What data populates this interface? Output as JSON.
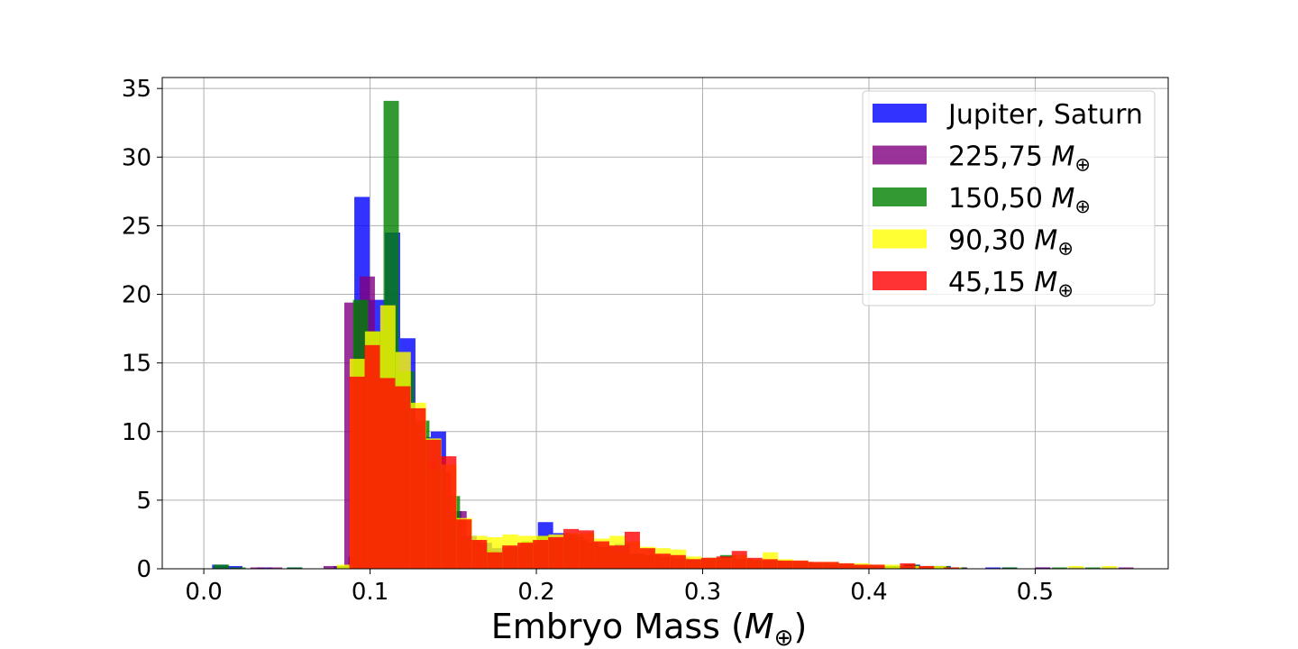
{
  "chart_data": {
    "type": "bar",
    "title": "",
    "xlabel": "Embryo Mass (",
    "xlabel_symbol": "M",
    "xlabel_sub": "⊕",
    "xlabel_end": ")",
    "ylabel": "",
    "xlim": [
      -0.025,
      0.58
    ],
    "ylim": [
      0,
      35.8
    ],
    "grid": true,
    "legend_position": "top-right",
    "x_ticks": [
      0.0,
      0.1,
      0.2,
      0.3,
      0.4,
      0.5
    ],
    "x_tick_labels": [
      "0.0",
      "0.1",
      "0.2",
      "0.3",
      "0.4",
      "0.5"
    ],
    "y_ticks": [
      0,
      5,
      10,
      15,
      20,
      25,
      30,
      35
    ],
    "y_tick_labels": [
      "0",
      "5",
      "10",
      "15",
      "20",
      "25",
      "30",
      "35"
    ],
    "series": [
      {
        "name": "Jupiter, Saturn",
        "name_symbol": "",
        "color": "#0000ff",
        "opacity": 0.8,
        "bin_width": 0.0092,
        "bins": [
          [
            0.005,
            0.3
          ],
          [
            0.014,
            0.2
          ],
          [
            0.032,
            0.1
          ],
          [
            0.05,
            0.1
          ],
          [
            0.078,
            0.2
          ],
          [
            0.087,
            0.9
          ],
          [
            0.0905,
            27.1
          ],
          [
            0.0997,
            19.6
          ],
          [
            0.1089,
            24.5
          ],
          [
            0.1181,
            16.8
          ],
          [
            0.1273,
            9.6
          ],
          [
            0.1365,
            10.0
          ],
          [
            0.1457,
            4.2
          ],
          [
            0.1549,
            2.4
          ],
          [
            0.1641,
            1.9
          ],
          [
            0.1733,
            1.5
          ],
          [
            0.1825,
            1.6
          ],
          [
            0.1917,
            1.8
          ],
          [
            0.2009,
            3.4
          ],
          [
            0.2101,
            2.6
          ],
          [
            0.2193,
            2.3
          ],
          [
            0.2285,
            1.9
          ],
          [
            0.2377,
            1.6
          ],
          [
            0.2469,
            1.8
          ],
          [
            0.2561,
            1.1
          ],
          [
            0.2653,
            1.0
          ],
          [
            0.2745,
            0.8
          ],
          [
            0.2837,
            0.7
          ],
          [
            0.2929,
            0.7
          ],
          [
            0.3021,
            0.6
          ],
          [
            0.3113,
            0.8
          ],
          [
            0.3205,
            0.7
          ],
          [
            0.3297,
            0.6
          ],
          [
            0.3389,
            0.6
          ],
          [
            0.3481,
            0.5
          ],
          [
            0.3573,
            0.5
          ],
          [
            0.3665,
            0.4
          ],
          [
            0.3757,
            0.3
          ],
          [
            0.3849,
            0.3
          ],
          [
            0.3941,
            0.2
          ],
          [
            0.4033,
            0.2
          ],
          [
            0.4125,
            0.2
          ],
          [
            0.4217,
            0.3
          ],
          [
            0.4309,
            0.2
          ],
          [
            0.4401,
            0.2
          ],
          [
            0.4493,
            0.1
          ],
          [
            0.47,
            0.1
          ],
          [
            0.48,
            0.1
          ],
          [
            0.5,
            0.1
          ],
          [
            0.52,
            0.1
          ],
          [
            0.54,
            0.1
          ]
        ]
      },
      {
        "name": "225,75 ",
        "name_symbol": "M",
        "name_sub": "⊕",
        "color": "#800080",
        "opacity": 0.8,
        "bin_width": 0.0092,
        "bins": [
          [
            0.028,
            0.1
          ],
          [
            0.038,
            0.1
          ],
          [
            0.072,
            0.2
          ],
          [
            0.0845,
            19.4
          ],
          [
            0.0937,
            21.3
          ],
          [
            0.1029,
            17.0
          ],
          [
            0.1121,
            13.5
          ],
          [
            0.1213,
            10.3
          ],
          [
            0.1305,
            7.9
          ],
          [
            0.1397,
            7.0
          ],
          [
            0.1489,
            4.2
          ],
          [
            0.1581,
            2.1
          ],
          [
            0.1673,
            1.3
          ],
          [
            0.1765,
            1.2
          ],
          [
            0.1857,
            1.4
          ],
          [
            0.1949,
            1.6
          ],
          [
            0.2041,
            2.3
          ],
          [
            0.2133,
            2.5
          ],
          [
            0.2225,
            2.1
          ],
          [
            0.2317,
            1.6
          ],
          [
            0.2409,
            1.2
          ],
          [
            0.2501,
            1.0
          ],
          [
            0.2593,
            0.9
          ],
          [
            0.2685,
            0.7
          ],
          [
            0.2777,
            0.6
          ],
          [
            0.2869,
            0.6
          ],
          [
            0.2961,
            0.5
          ],
          [
            0.3053,
            0.6
          ],
          [
            0.3145,
            0.5
          ],
          [
            0.3237,
            0.5
          ],
          [
            0.3329,
            0.4
          ],
          [
            0.3421,
            0.4
          ],
          [
            0.3513,
            0.3
          ],
          [
            0.3605,
            0.3
          ],
          [
            0.3697,
            0.2
          ],
          [
            0.3789,
            0.2
          ],
          [
            0.3881,
            0.2
          ],
          [
            0.3973,
            0.2
          ],
          [
            0.4065,
            0.1
          ],
          [
            0.45,
            0.1
          ],
          [
            0.5,
            0.1
          ],
          [
            0.55,
            0.1
          ]
        ]
      },
      {
        "name": "150,50 ",
        "name_symbol": "M",
        "name_sub": "⊕",
        "color": "#008000",
        "opacity": 0.8,
        "bin_width": 0.0092,
        "bins": [
          [
            0.006,
            0.3
          ],
          [
            0.016,
            0.1
          ],
          [
            0.05,
            0.1
          ],
          [
            0.08,
            0.2
          ],
          [
            0.0897,
            19.6
          ],
          [
            0.0989,
            17.3
          ],
          [
            0.1081,
            34.1
          ],
          [
            0.1173,
            14.4
          ],
          [
            0.1265,
            10.8
          ],
          [
            0.1357,
            7.2
          ],
          [
            0.1449,
            5.3
          ],
          [
            0.1541,
            2.1
          ],
          [
            0.1633,
            1.4
          ],
          [
            0.1725,
            1.2
          ],
          [
            0.1817,
            1.4
          ],
          [
            0.1909,
            2.0
          ],
          [
            0.2001,
            2.4
          ],
          [
            0.2093,
            2.2
          ],
          [
            0.2185,
            2.5
          ],
          [
            0.2277,
            1.9
          ],
          [
            0.2369,
            1.5
          ],
          [
            0.2461,
            1.3
          ],
          [
            0.2553,
            1.1
          ],
          [
            0.2645,
            1.0
          ],
          [
            0.2737,
            0.9
          ],
          [
            0.2829,
            0.8
          ],
          [
            0.2921,
            0.7
          ],
          [
            0.3013,
            0.8
          ],
          [
            0.3105,
            1.0
          ],
          [
            0.3197,
            0.7
          ],
          [
            0.3289,
            0.6
          ],
          [
            0.3381,
            0.6
          ],
          [
            0.3473,
            0.5
          ],
          [
            0.3565,
            0.4
          ],
          [
            0.3657,
            0.4
          ],
          [
            0.3749,
            0.3
          ],
          [
            0.3841,
            0.3
          ],
          [
            0.3933,
            0.3
          ],
          [
            0.4025,
            0.2
          ],
          [
            0.4117,
            0.2
          ],
          [
            0.4209,
            0.3
          ],
          [
            0.4301,
            0.2
          ],
          [
            0.4393,
            0.2
          ],
          [
            0.4485,
            0.1
          ],
          [
            0.48,
            0.1
          ],
          [
            0.51,
            0.1
          ],
          [
            0.53,
            0.1
          ]
        ]
      },
      {
        "name": "90,30 ",
        "name_symbol": "M",
        "name_sub": "⊕",
        "color": "#ffff00",
        "opacity": 0.8,
        "bin_width": 0.0092,
        "bins": [
          [
            0.08,
            0.3
          ],
          [
            0.0877,
            15.3
          ],
          [
            0.0969,
            17.3
          ],
          [
            0.1061,
            19.2
          ],
          [
            0.1153,
            15.8
          ],
          [
            0.1245,
            12.1
          ],
          [
            0.1337,
            9.5
          ],
          [
            0.1429,
            7.6
          ],
          [
            0.1521,
            3.7
          ],
          [
            0.1613,
            2.4
          ],
          [
            0.1705,
            2.3
          ],
          [
            0.1797,
            2.5
          ],
          [
            0.1889,
            2.4
          ],
          [
            0.1981,
            2.4
          ],
          [
            0.2073,
            2.5
          ],
          [
            0.2165,
            2.6
          ],
          [
            0.2257,
            2.6
          ],
          [
            0.2349,
            2.2
          ],
          [
            0.2441,
            2.4
          ],
          [
            0.2533,
            2.0
          ],
          [
            0.2625,
            1.6
          ],
          [
            0.2717,
            1.5
          ],
          [
            0.2809,
            1.4
          ],
          [
            0.2901,
            0.9
          ],
          [
            0.2993,
            0.8
          ],
          [
            0.3085,
            0.8
          ],
          [
            0.3177,
            1.0
          ],
          [
            0.3269,
            0.7
          ],
          [
            0.3361,
            1.2
          ],
          [
            0.3453,
            0.7
          ],
          [
            0.3545,
            0.6
          ],
          [
            0.3637,
            0.5
          ],
          [
            0.3729,
            0.5
          ],
          [
            0.3821,
            0.4
          ],
          [
            0.3913,
            0.4
          ],
          [
            0.4005,
            0.3
          ],
          [
            0.4097,
            0.3
          ],
          [
            0.4189,
            0.2
          ],
          [
            0.4281,
            0.2
          ],
          [
            0.4373,
            0.2
          ],
          [
            0.4465,
            0.1
          ],
          [
            0.52,
            0.2
          ],
          [
            0.54,
            0.2
          ]
        ]
      },
      {
        "name": "45,15 ",
        "name_symbol": "M",
        "name_sub": "⊕",
        "color": "#ff0000",
        "opacity": 0.8,
        "bin_width": 0.0092,
        "bins": [
          [
            0.0875,
            14.0
          ],
          [
            0.0967,
            16.3
          ],
          [
            0.1059,
            13.9
          ],
          [
            0.1151,
            13.3
          ],
          [
            0.1243,
            11.7
          ],
          [
            0.1335,
            9.4
          ],
          [
            0.1427,
            8.2
          ],
          [
            0.1519,
            3.6
          ],
          [
            0.1611,
            2.1
          ],
          [
            0.1703,
            1.2
          ],
          [
            0.1795,
            1.7
          ],
          [
            0.1887,
            1.9
          ],
          [
            0.1979,
            2.1
          ],
          [
            0.2071,
            2.3
          ],
          [
            0.2163,
            2.9
          ],
          [
            0.2255,
            2.8
          ],
          [
            0.2347,
            2.0
          ],
          [
            0.2439,
            1.7
          ],
          [
            0.2531,
            2.7
          ],
          [
            0.2623,
            1.5
          ],
          [
            0.2715,
            1.1
          ],
          [
            0.2807,
            1.0
          ],
          [
            0.2899,
            0.7
          ],
          [
            0.2991,
            0.8
          ],
          [
            0.3083,
            0.9
          ],
          [
            0.3175,
            1.3
          ],
          [
            0.3267,
            0.8
          ],
          [
            0.3359,
            0.7
          ],
          [
            0.3451,
            0.6
          ],
          [
            0.3543,
            0.6
          ],
          [
            0.3635,
            0.5
          ],
          [
            0.3727,
            0.5
          ],
          [
            0.3819,
            0.4
          ],
          [
            0.3911,
            0.3
          ],
          [
            0.4003,
            0.3
          ],
          [
            0.4187,
            0.4
          ],
          [
            0.43,
            0.2
          ],
          [
            0.445,
            0.1
          ]
        ]
      }
    ]
  }
}
